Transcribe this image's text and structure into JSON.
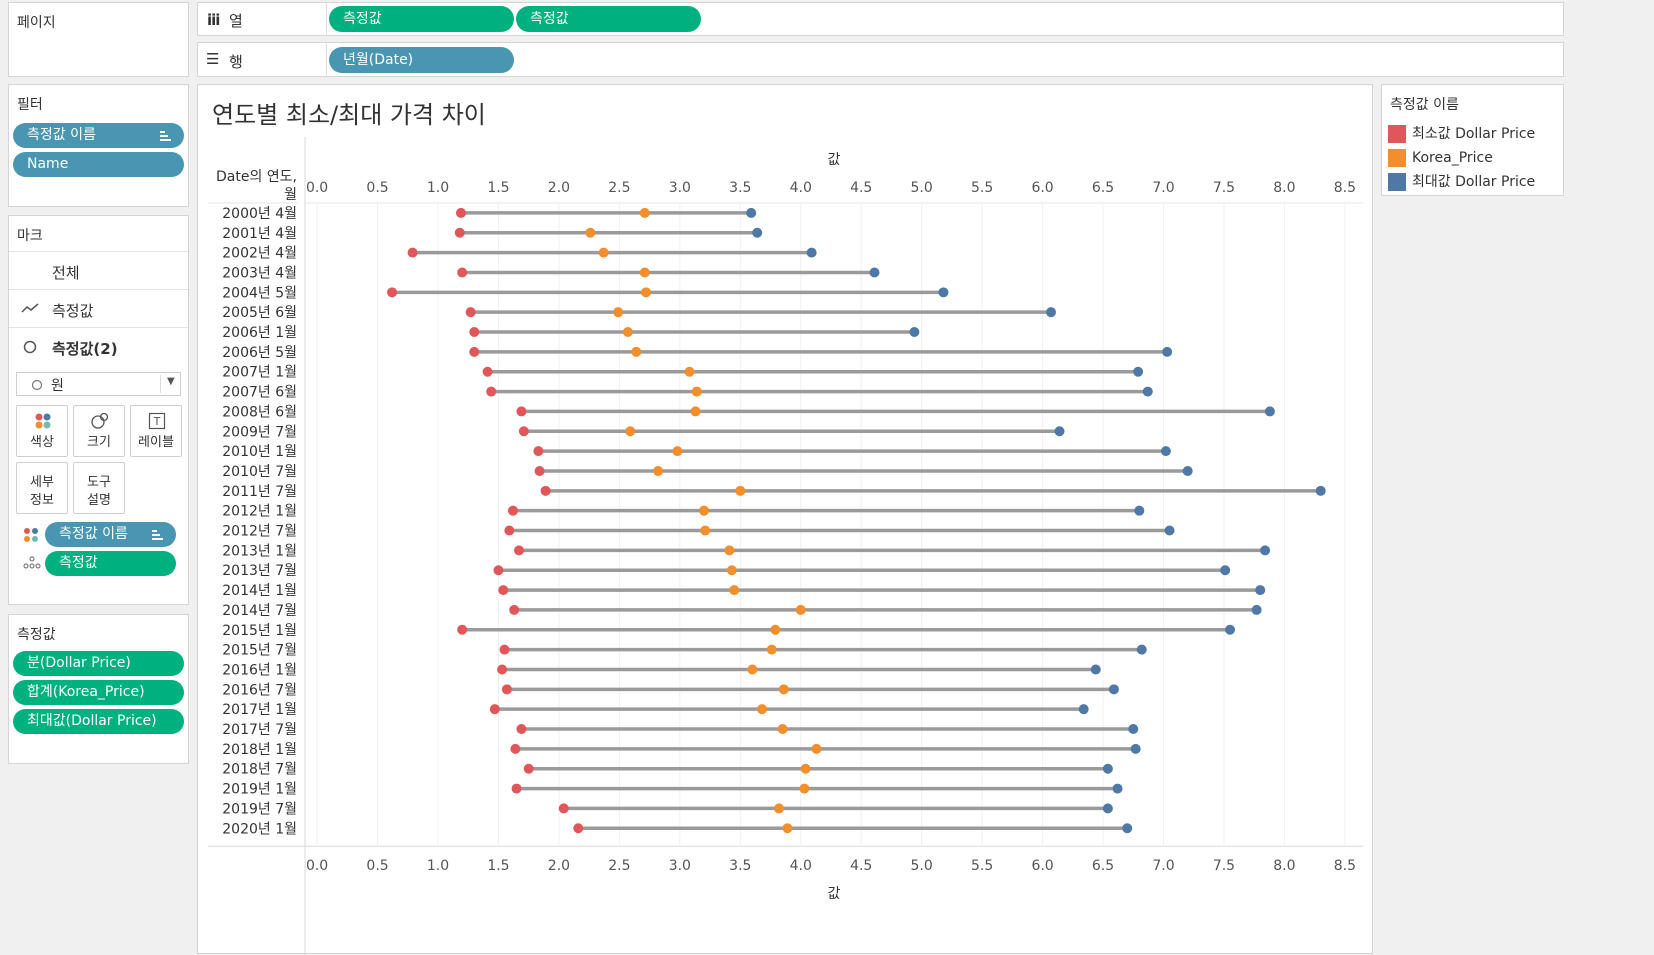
{
  "shelves": {
    "pages_title": "페이지",
    "columns_label": "열",
    "columns_pills": [
      "측정값",
      "측정값"
    ],
    "rows_label": "행",
    "rows_pill": "년월(Date)"
  },
  "filters": {
    "title": "필터",
    "pills": [
      "측정값 이름",
      "Name"
    ]
  },
  "marks": {
    "title": "마크",
    "rows": [
      "전체",
      "측정값",
      "측정값(2)"
    ],
    "mark_type": "원",
    "buttons": [
      "색상",
      "크기",
      "레이블"
    ],
    "buttons2_line1": [
      "세부",
      "도구"
    ],
    "buttons2_line2": [
      "정보",
      "설명"
    ],
    "pills": [
      "측정값 이름",
      "측정값"
    ]
  },
  "measures": {
    "title": "측정값",
    "pills": [
      "분(Dollar Price)",
      "합계(Korea_Price)",
      "최대값(Dollar Price)"
    ]
  },
  "legend": {
    "title": "측정값 이름",
    "items": [
      {
        "label": "최소값 Dollar Price",
        "color": "#e15759"
      },
      {
        "label": "Korea_Price",
        "color": "#f28e2b"
      },
      {
        "label": "최대값 Dollar Price",
        "color": "#4e79a7"
      }
    ]
  },
  "chart_data": {
    "type": "dumbbell",
    "title": "연도별 최소/최대 가격 차이",
    "row_header": "Date의 연도, 월",
    "xlabel": "값",
    "xlim": [
      -0.1,
      8.65
    ],
    "xticks": [
      "0.0",
      "0.5",
      "1.0",
      "1.5",
      "2.0",
      "2.5",
      "3.0",
      "3.5",
      "4.0",
      "4.5",
      "5.0",
      "5.5",
      "6.0",
      "6.5",
      "7.0",
      "7.5",
      "8.0",
      "8.5"
    ],
    "categories": [
      "2000년 4월",
      "2001년 4월",
      "2002년 4월",
      "2003년 4월",
      "2004년 5월",
      "2005년 6월",
      "2006년 1월",
      "2006년 5월",
      "2007년 1월",
      "2007년 6월",
      "2008년 6월",
      "2009년 7월",
      "2010년 1월",
      "2010년 7월",
      "2011년 7월",
      "2012년 1월",
      "2012년 7월",
      "2013년 1월",
      "2013년 7월",
      "2014년 1월",
      "2014년 7월",
      "2015년 1월",
      "2015년 7월",
      "2016년 1월",
      "2016년 7월",
      "2017년 1월",
      "2017년 7월",
      "2018년 1월",
      "2018년 7월",
      "2019년 1월",
      "2019년 7월",
      "2020년 1월"
    ],
    "series": [
      {
        "name": "최소값 Dollar Price",
        "color": "#e15759",
        "values": [
          1.19,
          1.18,
          0.79,
          1.2,
          0.62,
          1.27,
          1.3,
          1.3,
          1.41,
          1.44,
          1.69,
          1.71,
          1.83,
          1.84,
          1.89,
          1.62,
          1.59,
          1.67,
          1.5,
          1.54,
          1.63,
          1.2,
          1.55,
          1.53,
          1.57,
          1.47,
          1.69,
          1.64,
          1.75,
          1.65,
          2.04,
          2.16
        ]
      },
      {
        "name": "Korea_Price",
        "color": "#f28e2b",
        "values": [
          2.71,
          2.26,
          2.37,
          2.71,
          2.72,
          2.49,
          2.57,
          2.64,
          3.08,
          3.14,
          3.13,
          2.59,
          2.98,
          2.82,
          3.5,
          3.2,
          3.21,
          3.41,
          3.43,
          3.45,
          4.0,
          3.79,
          3.76,
          3.6,
          3.86,
          3.68,
          3.85,
          4.13,
          4.04,
          4.03,
          3.82,
          3.89
        ]
      },
      {
        "name": "최대값 Dollar Price",
        "color": "#4e79a7",
        "values": [
          3.59,
          3.64,
          4.09,
          4.61,
          5.18,
          6.07,
          4.94,
          7.03,
          6.79,
          6.87,
          7.88,
          6.14,
          7.02,
          7.2,
          8.3,
          6.8,
          7.05,
          7.84,
          7.51,
          7.8,
          7.77,
          7.55,
          6.82,
          6.44,
          6.59,
          6.34,
          6.75,
          6.77,
          6.54,
          6.62,
          6.54,
          6.7
        ]
      }
    ]
  }
}
